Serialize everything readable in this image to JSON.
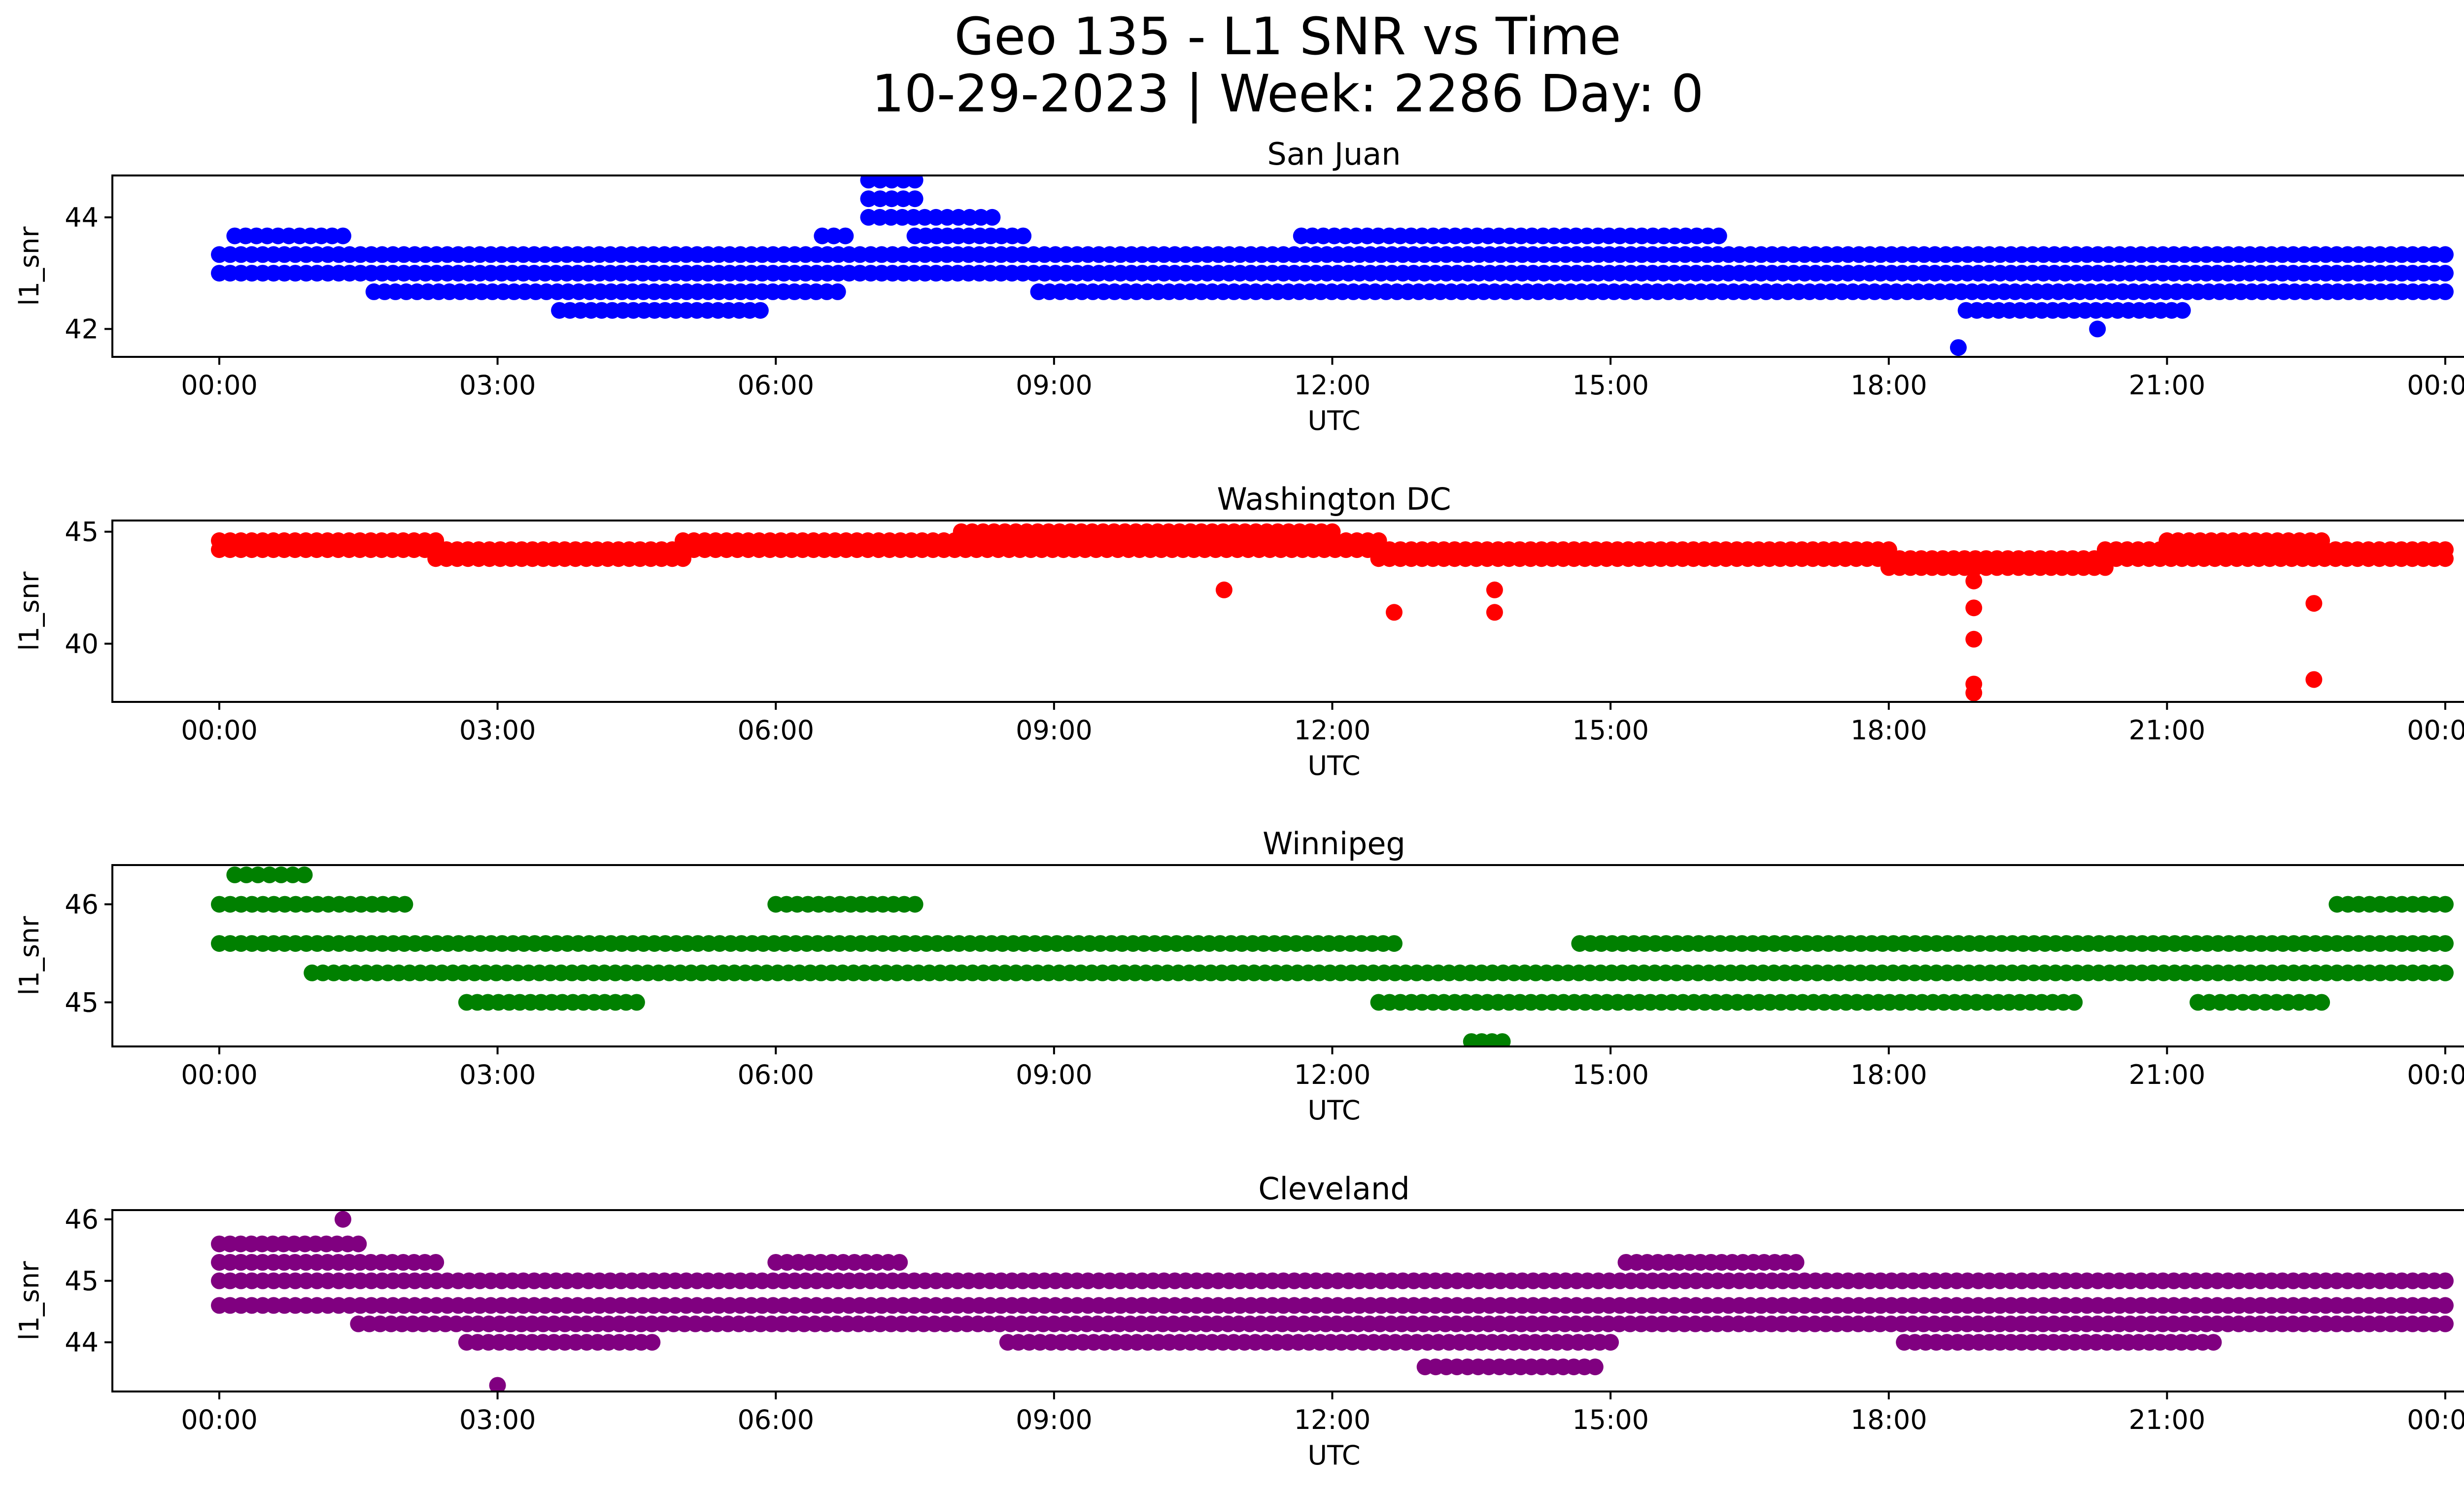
{
  "figure": {
    "title_line1": "Geo 135 - L1 SNR vs Time",
    "title_line2": "10-29-2023 | Week: 2286 Day: 0"
  },
  "chart_data": [
    {
      "type": "scatter",
      "title": "San Juan",
      "color": "#0000ff",
      "xlabel": "UTC",
      "ylabel": "l1_snr",
      "x_ticks": [
        "00:00",
        "03:00",
        "06:00",
        "09:00",
        "12:00",
        "15:00",
        "18:00",
        "21:00",
        "00:00"
      ],
      "y_ticks": [
        42,
        44
      ],
      "ylim": [
        41.5,
        44.75
      ],
      "points": [
        {
          "levels": [
            43.0,
            43.333
          ],
          "from": "00:00",
          "to": "24:00"
        },
        {
          "levels": [
            42.667
          ],
          "from": "01:40",
          "to": "06:40"
        },
        {
          "levels": [
            42.667
          ],
          "from": "08:50",
          "to": "18:40"
        },
        {
          "levels": [
            42.667
          ],
          "from": "18:40",
          "to": "24:00"
        },
        {
          "levels": [
            43.667
          ],
          "from": "00:10",
          "to": "01:20"
        },
        {
          "levels": [
            43.667
          ],
          "from": "06:30",
          "to": "06:45"
        },
        {
          "levels": [
            43.667
          ],
          "from": "07:30",
          "to": "08:40"
        },
        {
          "levels": [
            43.667
          ],
          "from": "11:40",
          "to": "16:10"
        },
        {
          "levels": [
            44.0
          ],
          "from": "07:00",
          "to": "08:20"
        },
        {
          "levels": [
            44.333,
            44.667
          ],
          "from": "07:00",
          "to": "07:30"
        },
        {
          "levels": [
            42.333
          ],
          "from": "03:40",
          "to": "05:50"
        },
        {
          "levels": [
            42.333
          ],
          "from": "18:50",
          "to": "21:10"
        },
        {
          "levels": [
            41.667
          ],
          "from": "18:45",
          "to": "18:48"
        },
        {
          "levels": [
            42.0
          ],
          "from": "20:15",
          "to": "20:18"
        }
      ]
    },
    {
      "type": "scatter",
      "title": "Washington DC",
      "color": "#ff0000",
      "xlabel": "UTC",
      "ylabel": "l1_snr",
      "x_ticks": [
        "00:00",
        "03:00",
        "06:00",
        "09:00",
        "12:00",
        "15:00",
        "18:00",
        "21:00",
        "00:00"
      ],
      "y_ticks": [
        40,
        45
      ],
      "ylim": [
        37.4,
        45.5
      ],
      "points": [
        {
          "levels": [
            44.2,
            44.6
          ],
          "from": "00:00",
          "to": "02:20"
        },
        {
          "levels": [
            43.8,
            44.2
          ],
          "from": "02:20",
          "to": "05:00"
        },
        {
          "levels": [
            44.2,
            44.6
          ],
          "from": "05:00",
          "to": "12:30"
        },
        {
          "levels": [
            45.0
          ],
          "from": "08:00",
          "to": "12:00"
        },
        {
          "levels": [
            43.8,
            44.2
          ],
          "from": "12:30",
          "to": "18:00"
        },
        {
          "levels": [
            43.4,
            43.8
          ],
          "from": "18:00",
          "to": "20:20"
        },
        {
          "levels": [
            43.8,
            44.2
          ],
          "from": "20:20",
          "to": "24:00"
        },
        {
          "levels": [
            44.6
          ],
          "from": "21:00",
          "to": "22:40"
        },
        {
          "levels": [
            42.4
          ],
          "from": "10:50",
          "to": "10:53"
        },
        {
          "levels": [
            41.4
          ],
          "from": "12:40",
          "to": "12:43"
        },
        {
          "levels": [
            42.4,
            41.4
          ],
          "from": "13:45",
          "to": "13:48"
        },
        {
          "levels": [
            42.8,
            41.6,
            40.2,
            38.2,
            37.8
          ],
          "from": "18:55",
          "to": "18:58"
        },
        {
          "levels": [
            41.8,
            38.4
          ],
          "from": "22:35",
          "to": "22:38"
        }
      ]
    },
    {
      "type": "scatter",
      "title": "Winnipeg",
      "color": "#008000",
      "xlabel": "UTC",
      "ylabel": "l1_snr",
      "x_ticks": [
        "00:00",
        "03:00",
        "06:00",
        "09:00",
        "12:00",
        "15:00",
        "18:00",
        "21:00",
        "00:00"
      ],
      "y_ticks": [
        45,
        46
      ],
      "ylim": [
        44.55,
        46.4
      ],
      "points": [
        {
          "levels": [
            45.6
          ],
          "from": "00:00",
          "to": "12:40"
        },
        {
          "levels": [
            45.6
          ],
          "from": "14:40",
          "to": "24:00"
        },
        {
          "levels": [
            45.3
          ],
          "from": "01:00",
          "to": "24:00"
        },
        {
          "levels": [
            46.0
          ],
          "from": "00:00",
          "to": "02:00"
        },
        {
          "levels": [
            46.0
          ],
          "from": "06:00",
          "to": "07:30"
        },
        {
          "levels": [
            46.0
          ],
          "from": "22:50",
          "to": "24:00"
        },
        {
          "levels": [
            46.3
          ],
          "from": "00:10",
          "to": "00:55"
        },
        {
          "levels": [
            45.0
          ],
          "from": "02:40",
          "to": "04:30"
        },
        {
          "levels": [
            45.0
          ],
          "from": "12:30",
          "to": "20:00"
        },
        {
          "levels": [
            45.0
          ],
          "from": "21:20",
          "to": "22:40"
        },
        {
          "levels": [
            44.6
          ],
          "from": "13:30",
          "to": "13:50"
        }
      ]
    },
    {
      "type": "scatter",
      "title": "Cleveland",
      "color": "#800080",
      "xlabel": "UTC",
      "ylabel": "l1_snr",
      "x_ticks": [
        "00:00",
        "03:00",
        "06:00",
        "09:00",
        "12:00",
        "15:00",
        "18:00",
        "21:00",
        "00:00"
      ],
      "y_ticks": [
        44,
        45,
        46
      ],
      "ylim": [
        43.2,
        46.15
      ],
      "points": [
        {
          "levels": [
            44.6,
            45.0
          ],
          "from": "00:00",
          "to": "24:00"
        },
        {
          "levels": [
            45.6
          ],
          "from": "00:00",
          "to": "01:30"
        },
        {
          "levels": [
            45.3
          ],
          "from": "00:00",
          "to": "02:20"
        },
        {
          "levels": [
            45.3
          ],
          "from": "06:00",
          "to": "07:20"
        },
        {
          "levels": [
            45.3
          ],
          "from": "15:10",
          "to": "17:00"
        },
        {
          "levels": [
            44.3
          ],
          "from": "01:30",
          "to": "24:00"
        },
        {
          "levels": [
            44.0
          ],
          "from": "02:40",
          "to": "04:40"
        },
        {
          "levels": [
            44.0
          ],
          "from": "08:30",
          "to": "15:00"
        },
        {
          "levels": [
            44.0
          ],
          "from": "18:10",
          "to": "21:30"
        },
        {
          "levels": [
            43.6
          ],
          "from": "13:00",
          "to": "14:50"
        },
        {
          "levels": [
            46.0
          ],
          "from": "01:20",
          "to": "01:23"
        },
        {
          "levels": [
            43.3
          ],
          "from": "03:00",
          "to": "03:03"
        }
      ]
    }
  ]
}
